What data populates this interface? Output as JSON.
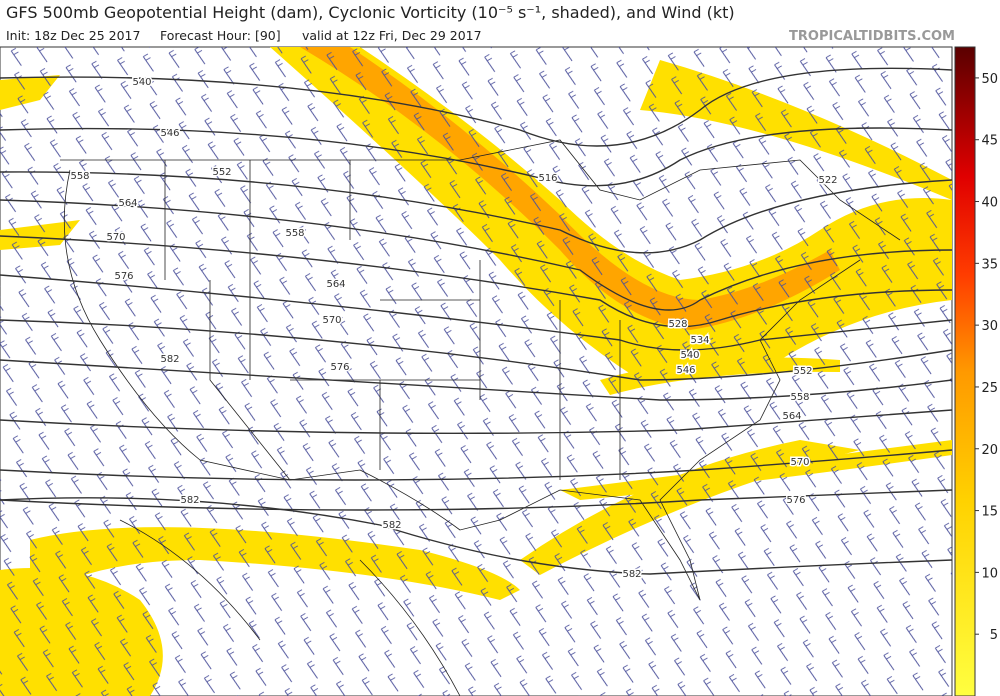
{
  "header": {
    "title": "GFS 500mb Geopotential Height (dam), Cyclonic Vorticity (10⁻⁵ s⁻¹, shaded), and Wind (kt)",
    "init": "Init: 18z Dec 25 2017",
    "forecast_hour": "Forecast Hour: [90]",
    "valid": "valid at 12z Fri, Dec 29 2017",
    "source": "TROPICALTIDBITS.COM"
  },
  "colorbar": {
    "range": [
      0,
      52.5
    ],
    "ticks": [
      5,
      10,
      15,
      20,
      25,
      30,
      35,
      40,
      45,
      50
    ]
  },
  "contour_labels": [
    540,
    546,
    552,
    558,
    564,
    570,
    576,
    582,
    558,
    564,
    570,
    576,
    516,
    522,
    528,
    534,
    540,
    546,
    552,
    558,
    564,
    570,
    576,
    582,
    582,
    582
  ]
}
